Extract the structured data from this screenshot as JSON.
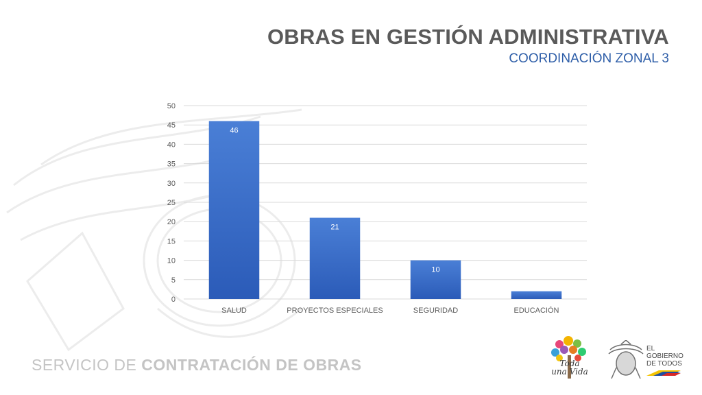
{
  "slide": {
    "title": "OBRAS EN GESTIÓN ADMINISTRATIVA",
    "subtitle": "COORDINACIÓN ZONAL 3"
  },
  "footer": {
    "brand_light": "SERVICIO DE ",
    "brand_bold": "CONTRATACIÓN DE OBRAS",
    "logo_left_text_1": "Toda",
    "logo_left_text_2": "una",
    "logo_left_text_3": "Vida",
    "gov_text": "EL\nGOBIERNO\nDE TODOS"
  },
  "chart_data": {
    "type": "bar",
    "categories": [
      "SALUD",
      "PROYECTOS ESPECIALES",
      "SEGURIDAD",
      "EDUCACIÓN"
    ],
    "values": [
      46,
      21,
      10,
      2
    ],
    "data_labels": [
      "46",
      "21",
      "10",
      ""
    ],
    "title": "",
    "xlabel": "",
    "ylabel": "",
    "ylim": [
      0,
      50
    ],
    "yticks": [
      0,
      5,
      10,
      15,
      20,
      25,
      30,
      35,
      40,
      45,
      50
    ],
    "grid": true,
    "legend": "none",
    "colors": {
      "bar_top": "#4a7fd6",
      "bar_bottom": "#2b5bb8",
      "grid": "#d9d9d9",
      "tick_text": "#595959"
    }
  }
}
